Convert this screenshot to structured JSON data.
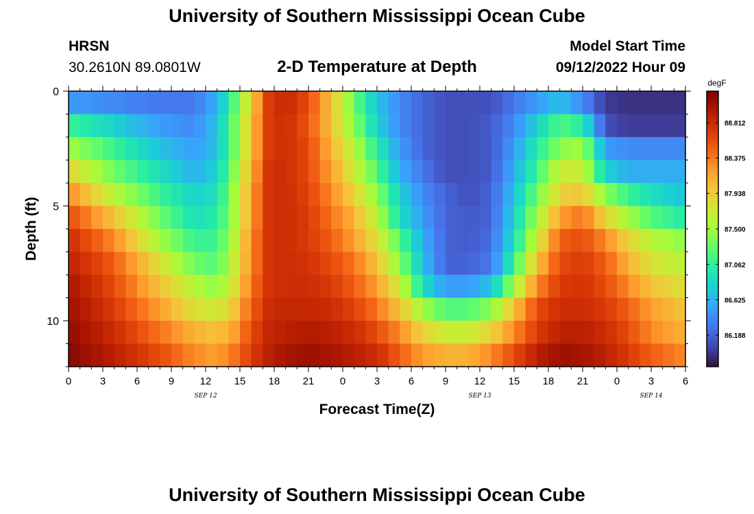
{
  "header": {
    "title": "University of Southern Mississippi Ocean Cube",
    "station": "HRSN",
    "coordinates": "30.2610N  89.0801W",
    "subtitle": "2-D Temperature at Depth",
    "model_start_label": "Model Start Time",
    "model_start_value": "09/12/2022 Hour 09"
  },
  "footer": {
    "title": "University of Southern Mississippi Ocean Cube"
  },
  "chart_data": {
    "type": "heatmap",
    "xlabel": "Forecast Time(Z)",
    "ylabel": "Depth (ft)",
    "x_range_hours": [
      0,
      54
    ],
    "x_tick_labels": [
      "0",
      "3",
      "6",
      "9",
      "12",
      "15",
      "18",
      "21",
      "0",
      "3",
      "6",
      "9",
      "12",
      "15",
      "18",
      "21",
      "0",
      "3",
      "6"
    ],
    "date_labels": [
      {
        "hour": 12,
        "text": "SEP 12"
      },
      {
        "hour": 36,
        "text": "SEP 13"
      },
      {
        "hour": 51,
        "text": "SEP 14"
      }
    ],
    "y_range_ft": [
      0,
      12
    ],
    "y_ticks": [
      0,
      5,
      10
    ],
    "colorbar": {
      "unit": "degF",
      "range": [
        85.8,
        89.2
      ],
      "tick_values": [
        88.812,
        88.375,
        87.938,
        87.5,
        87.062,
        86.625,
        86.188
      ],
      "tick_labels": [
        "88.812",
        "88.375",
        "87.938",
        "87.500",
        "87.062",
        "86.625",
        "86.188"
      ],
      "colors": [
        "#30123b",
        "#4145ab",
        "#4675ed",
        "#39a2fc",
        "#1bcfd4",
        "#24eca6",
        "#61fc6c",
        "#a4fc3b",
        "#d1e834",
        "#f3c63a",
        "#fe9b2d",
        "#f36315",
        "#d93806",
        "#b11901",
        "#7a0402"
      ]
    },
    "depth_levels_ft": [
      0.5,
      1.5,
      2.5,
      3.5,
      4.5,
      5.5,
      6.5,
      7.5,
      8.5,
      9.5,
      10.5,
      11.5
    ],
    "keyframe_hours": [
      0,
      4,
      8,
      11,
      13,
      14.5,
      16,
      17.5,
      19,
      21,
      23,
      25,
      27,
      29,
      31,
      33,
      35,
      37,
      39,
      41,
      43,
      45,
      47,
      49,
      51,
      54
    ],
    "temperature_degF": [
      [
        86.5,
        86.4,
        86.3,
        86.3,
        86.6,
        87.2,
        87.9,
        88.7,
        88.85,
        88.6,
        88.0,
        87.3,
        86.7,
        86.4,
        86.2,
        86.1,
        86.1,
        86.1,
        86.3,
        86.5,
        86.7,
        86.4,
        86.0,
        85.95,
        85.95,
        85.95
      ],
      [
        87.1,
        86.8,
        86.5,
        86.4,
        86.7,
        87.3,
        88.0,
        88.7,
        88.8,
        88.55,
        88.0,
        87.4,
        86.8,
        86.4,
        86.2,
        86.1,
        86.1,
        86.15,
        86.4,
        86.8,
        87.2,
        87.0,
        86.1,
        86.0,
        86.0,
        86.0
      ],
      [
        87.5,
        87.1,
        86.7,
        86.5,
        86.7,
        87.3,
        88.0,
        88.7,
        88.8,
        88.6,
        88.1,
        87.6,
        87.0,
        86.5,
        86.2,
        86.1,
        86.1,
        86.15,
        86.5,
        87.0,
        87.4,
        87.5,
        86.5,
        86.4,
        86.4,
        86.4
      ],
      [
        87.9,
        87.3,
        86.9,
        86.6,
        86.8,
        87.4,
        88.1,
        88.75,
        88.8,
        88.6,
        88.2,
        87.7,
        87.2,
        86.6,
        86.3,
        86.1,
        86.1,
        86.15,
        86.6,
        87.1,
        87.7,
        87.7,
        86.8,
        86.6,
        86.6,
        86.6
      ],
      [
        88.3,
        87.6,
        87.1,
        86.8,
        86.9,
        87.5,
        88.2,
        88.75,
        88.8,
        88.65,
        88.3,
        87.9,
        87.4,
        86.8,
        86.4,
        86.2,
        86.1,
        86.2,
        86.7,
        87.3,
        87.9,
        88.0,
        87.4,
        87.1,
        86.9,
        86.7
      ],
      [
        88.6,
        88.0,
        87.3,
        86.9,
        87.0,
        87.5,
        88.2,
        88.75,
        88.8,
        88.7,
        88.4,
        88.1,
        87.6,
        86.9,
        86.5,
        86.2,
        86.15,
        86.2,
        86.8,
        87.5,
        88.2,
        88.4,
        87.9,
        87.5,
        87.2,
        87.0
      ],
      [
        88.8,
        88.3,
        87.5,
        87.1,
        87.1,
        87.6,
        88.3,
        88.75,
        88.8,
        88.7,
        88.5,
        88.2,
        87.8,
        87.2,
        86.6,
        86.2,
        86.15,
        86.25,
        86.9,
        87.7,
        88.5,
        88.6,
        88.3,
        87.9,
        87.6,
        87.4
      ],
      [
        88.9,
        88.5,
        87.8,
        87.3,
        87.2,
        87.7,
        88.3,
        88.75,
        88.8,
        88.75,
        88.6,
        88.4,
        88.0,
        87.4,
        86.7,
        86.2,
        86.2,
        86.3,
        87.1,
        88.0,
        88.6,
        88.7,
        88.5,
        88.1,
        87.8,
        87.6
      ],
      [
        89.0,
        88.6,
        88.0,
        87.6,
        87.4,
        87.8,
        88.4,
        88.75,
        88.8,
        88.8,
        88.7,
        88.5,
        88.2,
        87.7,
        86.9,
        86.5,
        86.5,
        86.7,
        87.5,
        88.3,
        88.7,
        88.75,
        88.6,
        88.3,
        88.0,
        87.8
      ],
      [
        89.05,
        88.7,
        88.2,
        87.8,
        87.7,
        88.0,
        88.5,
        88.8,
        88.85,
        88.85,
        88.8,
        88.65,
        88.4,
        88.0,
        87.5,
        87.2,
        87.2,
        87.4,
        88.0,
        88.6,
        88.8,
        88.8,
        88.7,
        88.5,
        88.2,
        88.0
      ],
      [
        89.1,
        88.8,
        88.4,
        88.1,
        88.0,
        88.2,
        88.6,
        88.85,
        88.9,
        88.95,
        88.9,
        88.8,
        88.6,
        88.3,
        87.9,
        87.7,
        87.7,
        87.9,
        88.3,
        88.7,
        88.9,
        88.9,
        88.8,
        88.6,
        88.3,
        88.1
      ],
      [
        89.15,
        88.9,
        88.6,
        88.3,
        88.2,
        88.4,
        88.7,
        88.9,
        89.0,
        89.05,
        89.0,
        88.9,
        88.8,
        88.5,
        88.2,
        88.1,
        88.1,
        88.3,
        88.6,
        88.9,
        89.05,
        89.0,
        88.9,
        88.7,
        88.5,
        88.3
      ]
    ]
  }
}
